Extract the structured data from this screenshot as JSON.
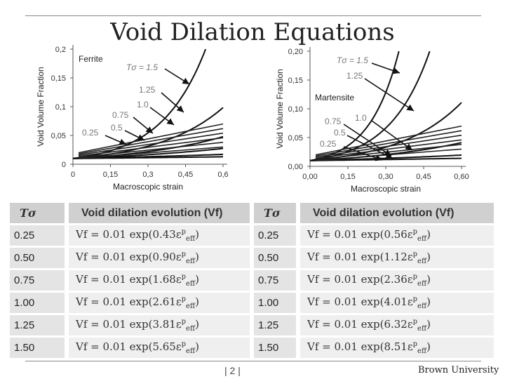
{
  "header": {
    "title": "Void Dilation Equations"
  },
  "chart_data": [
    {
      "type": "line",
      "annotation": "Ferrite",
      "ylabel": "Void Volume Fraction",
      "xlabel": "Macroscopic strain",
      "xticks": [
        "0",
        "0,15",
        "0,3",
        "0,45",
        "0,6"
      ],
      "yticks": [
        "0",
        "0,05",
        "0,1",
        "0,15",
        "0,2"
      ],
      "xlim": [
        0,
        0.6
      ],
      "ylim": [
        0,
        0.2
      ],
      "series": [
        {
          "name": "Tσ = 1.5",
          "rate": 5.65
        },
        {
          "name": "1.25",
          "rate": 3.81
        },
        {
          "name": "1.0",
          "rate": 2.61
        },
        {
          "name": "0.75",
          "rate": 1.68
        },
        {
          "name": "0.5",
          "rate": 0.9
        },
        {
          "name": "0.25",
          "rate": 0.43
        }
      ]
    },
    {
      "type": "line",
      "annotation": "Martensite",
      "ylabel": "Void Volume Fraction",
      "xlabel": "Macroscopic strain",
      "xticks": [
        "0,00",
        "0,15",
        "0,30",
        "0,45",
        "0,60"
      ],
      "yticks": [
        "0,00",
        "0,05",
        "0,10",
        "0,15",
        "0,20"
      ],
      "xlim": [
        0,
        0.6
      ],
      "ylim": [
        0,
        0.2
      ],
      "series": [
        {
          "name": "Tσ = 1.5",
          "rate": 8.51
        },
        {
          "name": "1.25",
          "rate": 6.32
        },
        {
          "name": "1.0",
          "rate": 4.01
        },
        {
          "name": "0.75",
          "rate": 2.36
        },
        {
          "name": "0.5",
          "rate": 1.12
        },
        {
          "name": "0.25",
          "rate": 0.56
        }
      ]
    }
  ],
  "table": {
    "headers": [
      "Tσ",
      "Void dilation evolution (Vf)",
      "Tσ",
      "Void dilation evolution (Vf)"
    ],
    "rows": [
      [
        "0.25",
        "Vf = 0.01 exp(0.43ε",
        "0.25",
        "Vf = 0.01 exp(0.56ε"
      ],
      [
        "0.50",
        "Vf = 0.01 exp(0.90ε",
        "0.50",
        "Vf = 0.01 exp(1.12ε"
      ],
      [
        "0.75",
        "Vf = 0.01 exp(1.68ε",
        "0.75",
        "Vf = 0.01 exp(2.36ε"
      ],
      [
        "1.00",
        "Vf = 0.01 exp(2.61ε",
        "1.00",
        "Vf = 0.01 exp(4.01ε"
      ],
      [
        "1.25",
        "Vf = 0.01 exp(3.81ε",
        "1.25",
        "Vf = 0.01 exp(6.32ε"
      ],
      [
        "1.50",
        "Vf = 0.01 exp(5.65ε",
        "1.50",
        "Vf = 0.01 exp(8.51ε"
      ]
    ],
    "eps_sup": "p",
    "eps_sub": "eff",
    "close": ")"
  },
  "footer": {
    "page": "| 2 |",
    "brand": "Brown University"
  }
}
